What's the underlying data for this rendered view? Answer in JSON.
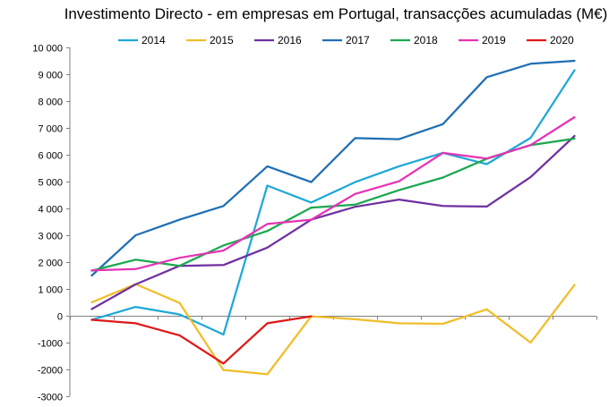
{
  "chart_data": {
    "type": "line",
    "title": "Investimento Directo - em empresas em Portugal, transacções acumuladas (M€)",
    "xlabel": "",
    "ylabel": "",
    "ylim": [
      -3000,
      10000
    ],
    "yticks": [
      -3000,
      -2000,
      -1000,
      0,
      1000,
      2000,
      3000,
      4000,
      5000,
      6000,
      7000,
      8000,
      9000,
      10000
    ],
    "ytick_labels": [
      "-3000",
      "-2000",
      "-1000",
      "0",
      "1 000",
      "2 000",
      "3 000",
      "4 000",
      "5 000",
      "6 000",
      "7 000",
      "8 000",
      "9 000",
      "10 000"
    ],
    "x": [
      1,
      2,
      3,
      4,
      5,
      6,
      7,
      8,
      9,
      10,
      11,
      12
    ],
    "xtick_labels": [
      "",
      "",
      "",
      "",
      "",
      "",
      "",
      "",
      "",
      "",
      "",
      ""
    ],
    "grid": false,
    "legend_position": "top",
    "series": [
      {
        "name": "2014",
        "color": "#1fa8d8",
        "values": [
          -150,
          330,
          50,
          -700,
          4850,
          4220,
          4980,
          5570,
          6070,
          5650,
          6630,
          9150
        ]
      },
      {
        "name": "2015",
        "color": "#f0be28",
        "values": [
          500,
          1180,
          480,
          -2020,
          -2180,
          -20,
          -130,
          -280,
          -300,
          240,
          -1000,
          1150
        ]
      },
      {
        "name": "2016",
        "color": "#7030a0",
        "values": [
          250,
          1170,
          1860,
          1890,
          2540,
          3580,
          4060,
          4330,
          4090,
          4070,
          5170,
          6700
        ]
      },
      {
        "name": "2017",
        "color": "#1f6fb4",
        "values": [
          1500,
          3000,
          3580,
          4090,
          5570,
          4980,
          6620,
          6580,
          7140,
          8890,
          9390,
          9500
        ]
      },
      {
        "name": "2018",
        "color": "#1ca851",
        "values": [
          1680,
          2090,
          1860,
          2620,
          3160,
          4030,
          4140,
          4680,
          5150,
          5850,
          6360,
          6600
        ]
      },
      {
        "name": "2019",
        "color": "#e633b5",
        "values": [
          1690,
          1740,
          2160,
          2430,
          3420,
          3580,
          4540,
          5010,
          6070,
          5860,
          6360,
          7400
        ]
      },
      {
        "name": "2020",
        "color": "#e01818",
        "values": [
          -150,
          -280,
          -730,
          -1780,
          -280,
          -20,
          null,
          null,
          null,
          null,
          null,
          null
        ]
      }
    ]
  }
}
